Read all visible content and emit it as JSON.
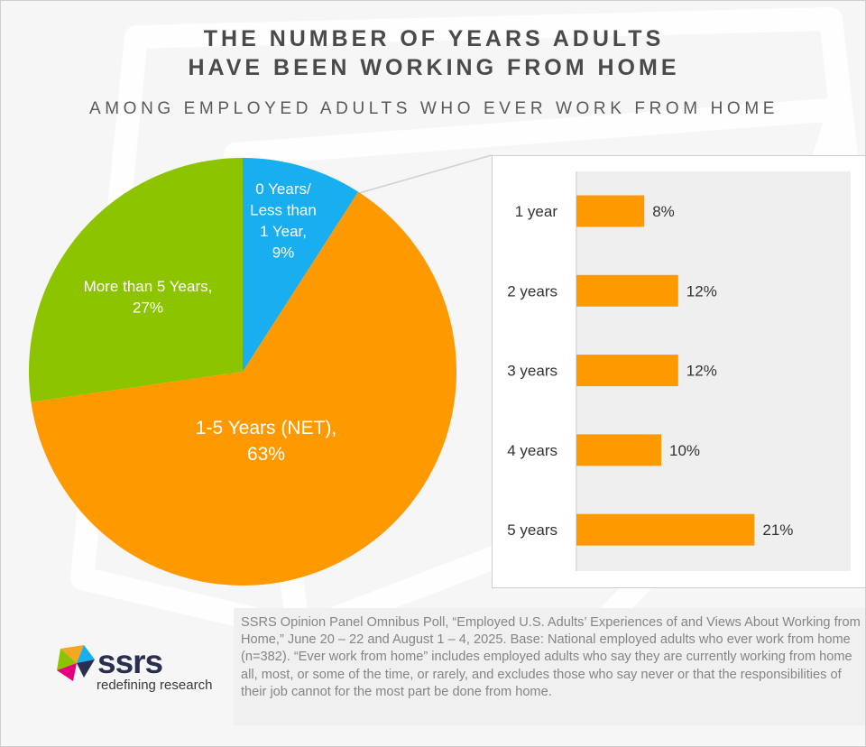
{
  "title_line1": "THE NUMBER OF YEARS ADULTS",
  "title_line2": "HAVE BEEN WORKING FROM HOME",
  "subtitle": "AMONG EMPLOYED ADULTS WHO EVER WORK FROM HOME",
  "colors": {
    "blue": "#18aef0",
    "orange": "#ff9900",
    "green": "#8cc400"
  },
  "chart_data": [
    {
      "type": "pie",
      "slices": [
        {
          "label_lines": [
            "0 Years/",
            "Less than",
            "1 Year,",
            "9%"
          ],
          "value": 9,
          "color": "#18aef0"
        },
        {
          "label_lines": [
            "1-5 Years (NET),",
            "63%"
          ],
          "value": 63,
          "color": "#ff9900"
        },
        {
          "label_lines": [
            "More than 5 Years,",
            "27%"
          ],
          "value": 27,
          "color": "#8cc400"
        }
      ]
    },
    {
      "type": "bar",
      "orientation": "horizontal",
      "categories": [
        "1 year",
        "2 years",
        "3 years",
        "4 years",
        "5 years"
      ],
      "values": [
        8,
        12,
        12,
        10,
        21
      ],
      "value_labels": [
        "8%",
        "12%",
        "12%",
        "10%",
        "21%"
      ],
      "color": "#ff9900"
    }
  ],
  "source": "SSRS Opinion Panel Omnibus Poll, “Employed U.S. Adults’ Experiences of and Views About Working from Home,” June 20 – 22 and August 1 – 4, 2025. Base: National employed adults who ever work from home (n=382). “Ever work from home” includes employed adults who say they are currently working from home all, most, or some of the time, or rarely, and excludes those who say never or that the responsibilities of their job cannot for the most part be done from home.",
  "logo": {
    "word": "ssrs",
    "tagline": "redefining research"
  }
}
